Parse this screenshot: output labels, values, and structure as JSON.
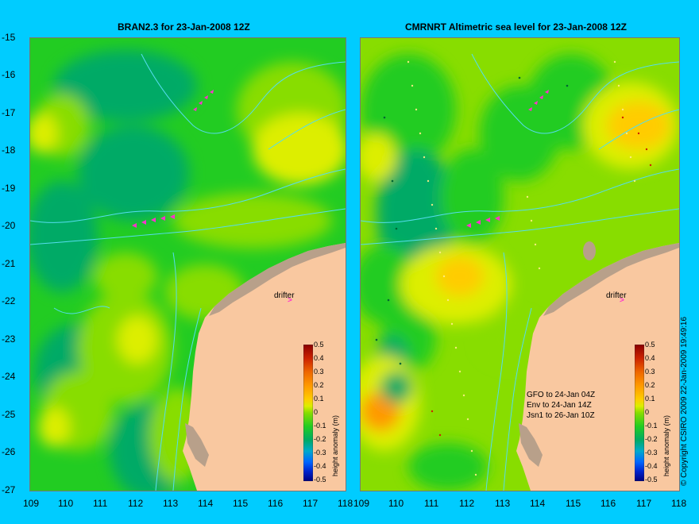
{
  "titles": {
    "left": "BRAN2.3 for 23-Jan-2008 12Z",
    "right": "CMRNRT Altimetric sea level  for 23-Jan-2008 12Z"
  },
  "axes": {
    "lat_labels": [
      "-15",
      "-16",
      "-17",
      "-18",
      "-19",
      "-20",
      "-21",
      "-22",
      "-23",
      "-24",
      "-25",
      "-26",
      "-27"
    ],
    "lon_labels": [
      "109",
      "110",
      "111",
      "112",
      "113",
      "114",
      "115",
      "116",
      "117",
      "118"
    ]
  },
  "colorbar": {
    "labels": [
      "0.5",
      "0.4",
      "0.3",
      "0.2",
      "0.1",
      "0",
      "-0.1",
      "-0.2",
      "-0.3",
      "-0.4",
      "-0.5"
    ],
    "units": "height anomaly (m)",
    "colors": [
      "#8b0000",
      "#cc2200",
      "#ee6600",
      "#ff9900",
      "#ffcc00",
      "#ddee00",
      "#88dd00",
      "#22cc22",
      "#00aa66",
      "#00aacc",
      "#0066ff",
      "#0022cc",
      "#000080"
    ]
  },
  "annotations": {
    "drifter_label": "drifter",
    "drifter_arrow": ">",
    "satellites": [
      "GFO to 24-Jan 04Z",
      "Env to 24-Jan 14Z",
      "Jsn1 to 26-Jan 10Z"
    ],
    "copyright": "© Copyright CSIRO 2009   22-Jan-2009 19:49:16"
  },
  "colors": {
    "background": "#00ccff",
    "land": "#f9c8a0",
    "coast_fill": "#b8a08a",
    "bathymetry_contour": "#55ddee",
    "drifter_track": "#ff33cc"
  }
}
